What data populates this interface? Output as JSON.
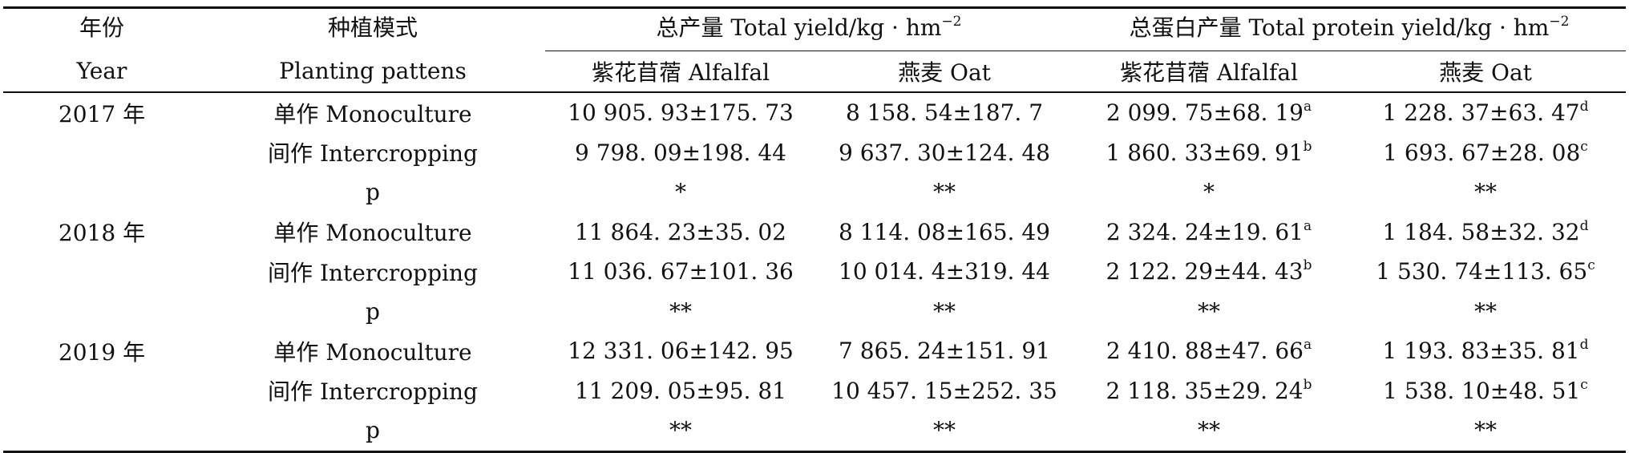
{
  "header": {
    "year_cn": "年份",
    "year_en": "Year",
    "mode_cn": "种植模式",
    "mode_en": "Planting pattens",
    "total_yield": "总产量 Total yield/kg · hm",
    "total_protein": "总蛋白产量 Total protein yield/kg · hm",
    "unit_exponent": "−2",
    "alfalfa": "紫花苜蓿 Alfalfal",
    "oat": "燕麦 Oat"
  },
  "groups": [
    {
      "year": "2017 年",
      "rows": [
        {
          "mode": "单作 Monoculture",
          "ty_alfalfa": "10 905. 93±175. 73",
          "ty_oat": "8 158. 54±187. 7",
          "tp_alfalfa": "2 099. 75±68. 19",
          "tp_alfalfa_sup": "a",
          "tp_oat": "1 228. 37±63. 47",
          "tp_oat_sup": "d"
        },
        {
          "mode": "间作 Intercropping",
          "ty_alfalfa": "9 798. 09±198. 44",
          "ty_oat": "9 637. 30±124. 48",
          "tp_alfalfa": "1 860. 33±69. 91",
          "tp_alfalfa_sup": "b",
          "tp_oat": "1 693. 67±28. 08",
          "tp_oat_sup": "c"
        },
        {
          "mode": "p",
          "ty_alfalfa": "*",
          "ty_oat": "**",
          "tp_alfalfa": "*",
          "tp_alfalfa_sup": "",
          "tp_oat": "**",
          "tp_oat_sup": ""
        }
      ]
    },
    {
      "year": "2018 年",
      "rows": [
        {
          "mode": "单作 Monoculture",
          "ty_alfalfa": "11 864. 23±35. 02",
          "ty_oat": "8 114. 08±165. 49",
          "tp_alfalfa": "2 324. 24±19. 61",
          "tp_alfalfa_sup": "a",
          "tp_oat": "1 184. 58±32. 32",
          "tp_oat_sup": "d"
        },
        {
          "mode": "间作 Intercropping",
          "ty_alfalfa": "11 036. 67±101. 36",
          "ty_oat": "10 014. 4±319. 44",
          "tp_alfalfa": "2 122. 29±44. 43",
          "tp_alfalfa_sup": "b",
          "tp_oat": "1 530. 74±113. 65",
          "tp_oat_sup": "c"
        },
        {
          "mode": "p",
          "ty_alfalfa": "**",
          "ty_oat": "**",
          "tp_alfalfa": "**",
          "tp_alfalfa_sup": "",
          "tp_oat": "**",
          "tp_oat_sup": ""
        }
      ]
    },
    {
      "year": "2019 年",
      "rows": [
        {
          "mode": "单作 Monoculture",
          "ty_alfalfa": "12 331. 06±142. 95",
          "ty_oat": "7 865. 24±151. 91",
          "tp_alfalfa": "2 410. 88±47. 66",
          "tp_alfalfa_sup": "a",
          "tp_oat": "1 193. 83±35. 81",
          "tp_oat_sup": "d"
        },
        {
          "mode": "间作 Intercropping",
          "ty_alfalfa": "11 209. 05±95. 81",
          "ty_oat": "10 457. 15±252. 35",
          "tp_alfalfa": "2 118. 35±29. 24",
          "tp_alfalfa_sup": "b",
          "tp_oat": "1 538. 10±48. 51",
          "tp_oat_sup": "c"
        },
        {
          "mode": "p",
          "ty_alfalfa": "**",
          "ty_oat": "**",
          "tp_alfalfa": "**",
          "tp_alfalfa_sup": "",
          "tp_oat": "**",
          "tp_oat_sup": ""
        }
      ]
    }
  ]
}
